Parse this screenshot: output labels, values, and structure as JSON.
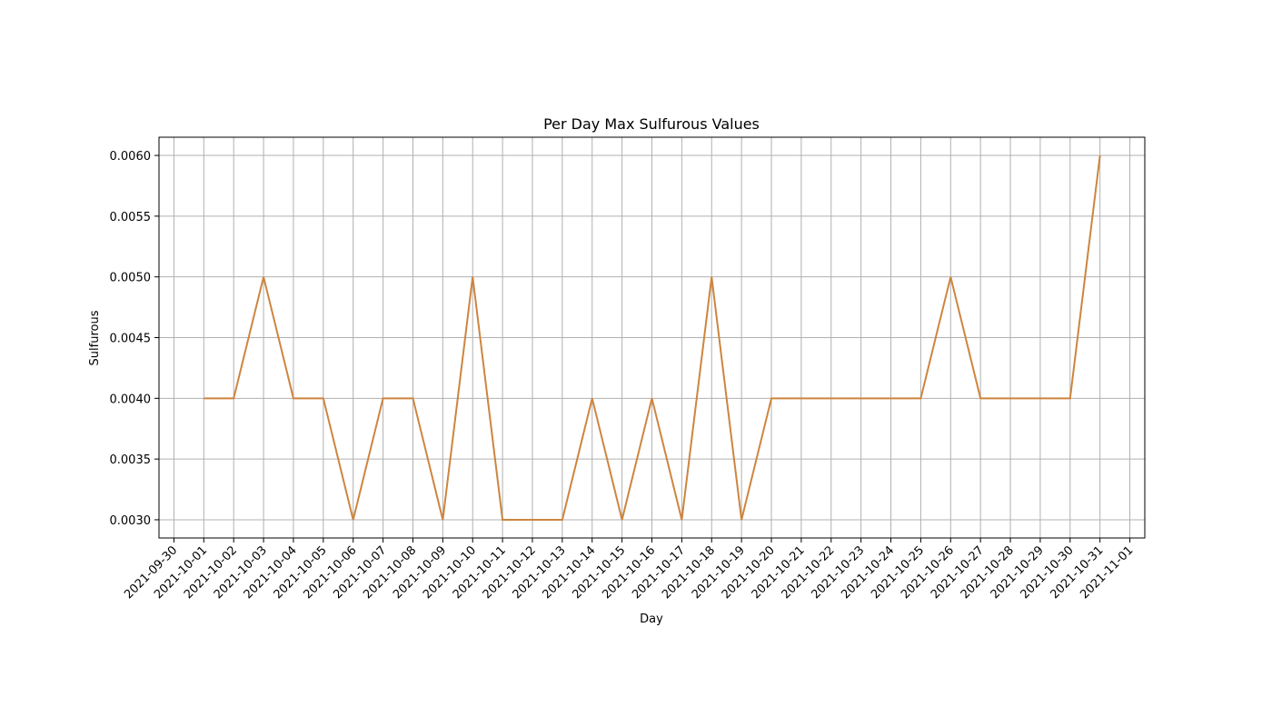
{
  "chart_data": {
    "type": "line",
    "title": "Per Day Max Sulfurous Values",
    "xlabel": "Day",
    "ylabel": "Sulfurous",
    "grid": true,
    "x_ticks": [
      "2021-09-30",
      "2021-10-01",
      "2021-10-02",
      "2021-10-03",
      "2021-10-04",
      "2021-10-05",
      "2021-10-06",
      "2021-10-07",
      "2021-10-08",
      "2021-10-09",
      "2021-10-10",
      "2021-10-11",
      "2021-10-12",
      "2021-10-13",
      "2021-10-14",
      "2021-10-15",
      "2021-10-16",
      "2021-10-17",
      "2021-10-18",
      "2021-10-19",
      "2021-10-20",
      "2021-10-21",
      "2021-10-22",
      "2021-10-23",
      "2021-10-24",
      "2021-10-25",
      "2021-10-26",
      "2021-10-27",
      "2021-10-28",
      "2021-10-29",
      "2021-10-30",
      "2021-10-31",
      "2021-11-01"
    ],
    "y_ticks": [
      "0.0030",
      "0.0035",
      "0.0040",
      "0.0045",
      "0.0050",
      "0.0055",
      "0.0060"
    ],
    "ylim": [
      0.00285,
      0.00615
    ],
    "xlim": [
      "2021-09-29.5",
      "2021-11-01.5"
    ],
    "series": [
      {
        "color": "#cd853f",
        "points": [
          [
            "2021-10-01",
            0.004
          ],
          [
            "2021-10-02",
            0.004
          ],
          [
            "2021-10-03",
            0.005
          ],
          [
            "2021-10-04",
            0.004
          ],
          [
            "2021-10-05",
            0.004
          ],
          [
            "2021-10-06",
            0.003
          ],
          [
            "2021-10-07",
            0.004
          ],
          [
            "2021-10-08",
            0.004
          ],
          [
            "2021-10-09",
            0.003
          ],
          [
            "2021-10-10",
            0.005
          ],
          [
            "2021-10-11",
            0.003
          ],
          [
            "2021-10-12",
            0.003
          ],
          [
            "2021-10-13",
            0.003
          ],
          [
            "2021-10-14",
            0.004
          ],
          [
            "2021-10-15",
            0.003
          ],
          [
            "2021-10-16",
            0.004
          ],
          [
            "2021-10-17",
            0.003
          ],
          [
            "2021-10-18",
            0.005
          ],
          [
            "2021-10-19",
            0.003
          ],
          [
            "2021-10-20",
            0.004
          ],
          [
            "2021-10-21",
            0.004
          ],
          [
            "2021-10-22",
            0.004
          ],
          [
            "2021-10-23",
            0.004
          ],
          [
            "2021-10-24",
            0.004
          ],
          [
            "2021-10-25",
            0.004
          ],
          [
            "2021-10-26",
            0.005
          ],
          [
            "2021-10-27",
            0.004
          ],
          [
            "2021-10-28",
            0.004
          ],
          [
            "2021-10-29",
            0.004
          ],
          [
            "2021-10-30",
            0.004
          ],
          [
            "2021-10-31",
            0.006
          ]
        ]
      }
    ]
  }
}
